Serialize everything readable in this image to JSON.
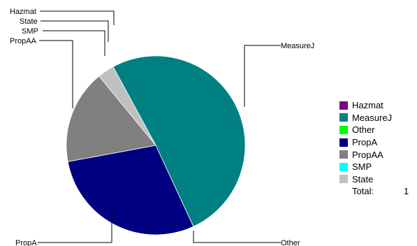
{
  "chart_data": {
    "type": "pie",
    "slices": [
      {
        "name": "Hazmat",
        "value": 0,
        "color": "#800080"
      },
      {
        "name": "MeasureJ",
        "value": 0.51,
        "color": "#008080"
      },
      {
        "name": "Other",
        "value": 0,
        "color": "#00ff00"
      },
      {
        "name": "PropA",
        "value": 0.29,
        "color": "#000080"
      },
      {
        "name": "PropAA",
        "value": 0.17,
        "color": "#808080"
      },
      {
        "name": "SMP",
        "value": 0,
        "color": "#00ffff"
      },
      {
        "name": "State",
        "value": 0.03,
        "color": "#c0c0c0"
      }
    ],
    "legend": {
      "position": "right",
      "entries": [
        "Hazmat",
        "MeasureJ",
        "Other",
        "PropA",
        "PropAA",
        "SMP",
        "State"
      ],
      "total_label": "Total:",
      "total_value": "1"
    }
  }
}
